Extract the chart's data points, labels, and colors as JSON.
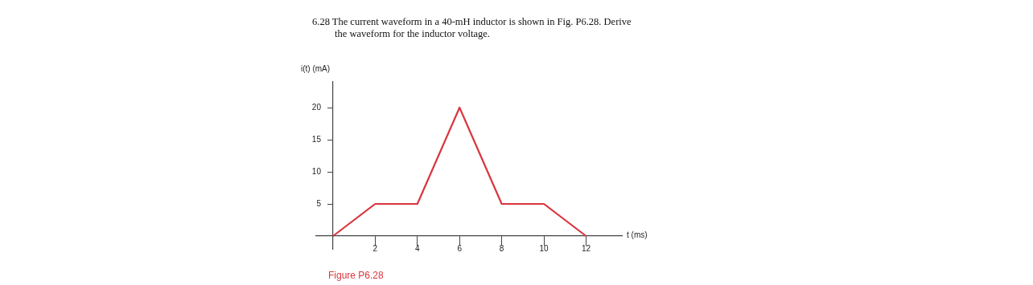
{
  "chart_data": {
    "type": "line",
    "title": "6.28 The current waveform in a 40-mH inductor is shown in Fig. P6.28. Derive the waveform for the inductor voltage.",
    "xlabel": "t (ms)",
    "ylabel": "i(t) (mA)",
    "annotations": [
      "Figure P6.28"
    ],
    "x": [
      0,
      2,
      4,
      6,
      8,
      10,
      12
    ],
    "series": [
      {
        "color": "#d9363e",
        "values": [
          0,
          5,
          5,
          20,
          5,
          5,
          0
        ]
      }
    ],
    "xlim": [
      -0.8,
      13.7
    ],
    "ylim": [
      -2,
      24
    ],
    "xticks": [
      2,
      4,
      6,
      8,
      10,
      12
    ],
    "yticks": [
      5,
      10,
      15,
      20
    ],
    "grid": false,
    "legend": false,
    "marker": "none",
    "line_style": "solid"
  }
}
